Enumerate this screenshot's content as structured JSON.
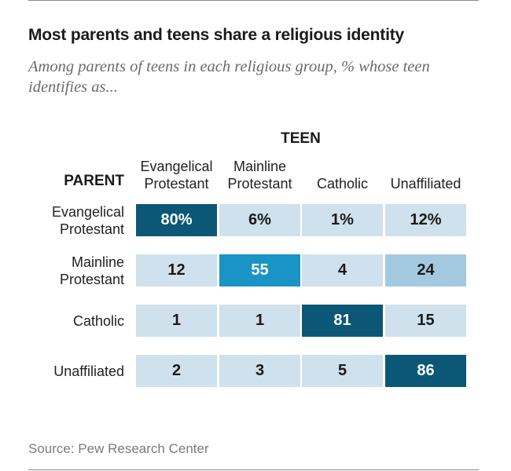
{
  "header": {
    "title": "Most parents and teens share a religious identity",
    "subtitle": "Among parents of teens in each religious group, % whose teen identifies as..."
  },
  "footer": {
    "source": "Source: Pew Research Center"
  },
  "colors": {
    "light": "#cfe1ec",
    "medium_light": "#a3c9e0",
    "medium": "#1a94c4",
    "dark": "#0b5775",
    "dark_text": "#ffffff",
    "light_text": "#1a1a1a"
  },
  "chart_data": {
    "type": "heatmap",
    "column_group_label": "TEEN",
    "row_group_label": "PARENT",
    "columns": [
      "Evangelical Protestant",
      "Mainline Protestant",
      "Catholic",
      "Unaffiliated"
    ],
    "rows": [
      "Evangelical Protestant",
      "Mainline Protestant",
      "Catholic",
      "Unaffiliated"
    ],
    "values": [
      [
        80,
        6,
        1,
        12
      ],
      [
        12,
        55,
        4,
        24
      ],
      [
        1,
        1,
        81,
        15
      ],
      [
        2,
        3,
        5,
        86
      ]
    ],
    "display_labels": [
      [
        "80%",
        "6%",
        "1%",
        "12%"
      ],
      [
        "12",
        "55",
        "4",
        "24"
      ],
      [
        "1",
        "1",
        "81",
        "15"
      ],
      [
        "2",
        "3",
        "5",
        "86"
      ]
    ],
    "unit": "%"
  }
}
